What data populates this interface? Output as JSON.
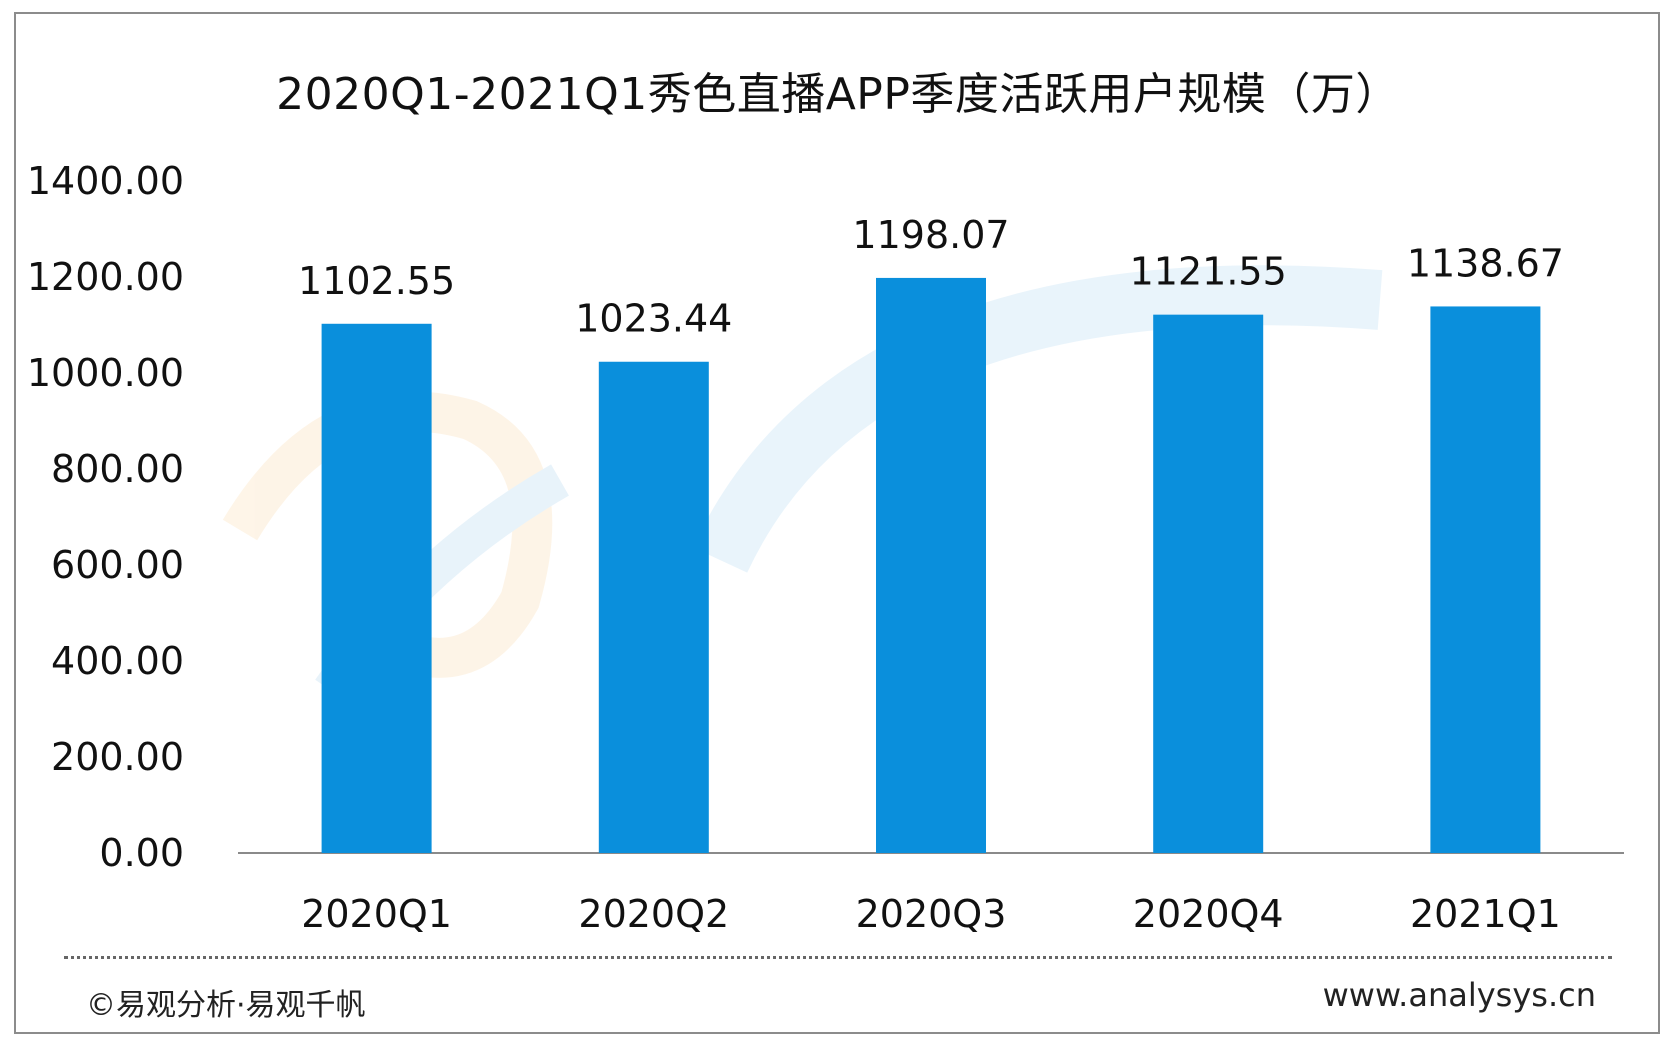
{
  "chart_data": {
    "type": "bar",
    "title": "2020Q1-2021Q1秀色直播APP季度活跃用户规模（万）",
    "categories": [
      "2020Q1",
      "2020Q2",
      "2020Q3",
      "2020Q4",
      "2021Q1"
    ],
    "values": [
      1102.55,
      1023.44,
      1198.07,
      1121.55,
      1138.67
    ],
    "value_labels": [
      "1102.55",
      "1023.44",
      "1198.07",
      "1121.55",
      "1138.67"
    ],
    "ylim": [
      0,
      1400
    ],
    "yticks": [
      "0.00",
      "200.00",
      "400.00",
      "600.00",
      "800.00",
      "1000.00",
      "1200.00",
      "1400.00"
    ],
    "xlabel": "",
    "ylabel": "",
    "grid": false,
    "bar_color": "#0a8fdc"
  },
  "footer": {
    "copyright": "©易观分析·易观千帆",
    "website": "www.analysys.cn"
  },
  "watermark": "analysys 易观分析"
}
